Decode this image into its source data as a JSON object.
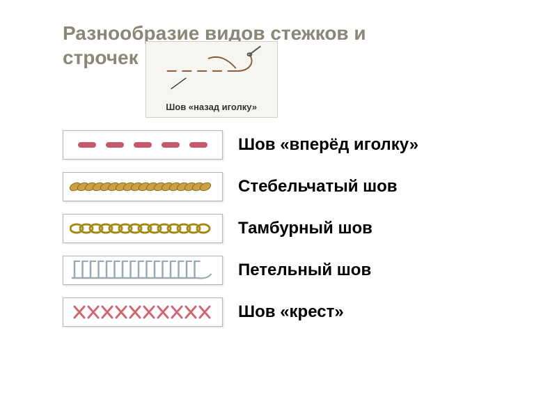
{
  "title_line1": "Разнообразие видов стежков и",
  "title_line2": "строчек",
  "title_color": "#8a8678",
  "needle_caption": "Шов «назад иголку»",
  "needle_diagram": {
    "bg": "#f7f5f0",
    "border": "#d0cec5",
    "dash_color": "#8a5a3a",
    "needle_color": "#5a5a5a"
  },
  "rows": [
    {
      "name": "forward-needle",
      "label": "Шов «вперёд иголку»",
      "type": "dashes",
      "color": "#c55a6a",
      "count": 5
    },
    {
      "name": "stem-stitch",
      "label": "Стебельчатый шов",
      "type": "rope",
      "color": "#caa145",
      "shadow": "#8a6a20"
    },
    {
      "name": "chain-stitch",
      "label": "Тамбурный шов",
      "type": "chain",
      "color": "#b8a030",
      "shadow": "#7a6a18"
    },
    {
      "name": "blanket-stitch",
      "label": "Петельный шов",
      "type": "blanket",
      "color": "#9aa8b0",
      "count": 16
    },
    {
      "name": "cross-stitch",
      "label": "Шов «крест»",
      "type": "cross",
      "color": "#d06878",
      "count": 10
    }
  ]
}
